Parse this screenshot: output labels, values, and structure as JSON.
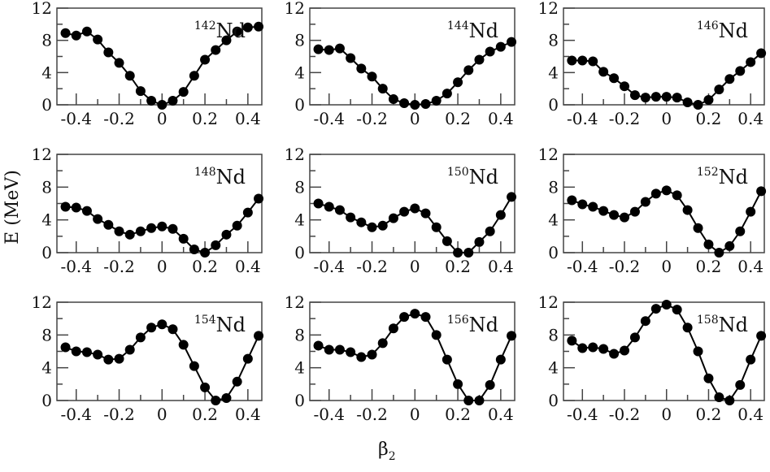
{
  "chart_data": [
    {
      "type": "line",
      "title": "142Nd",
      "mass": "142",
      "element": "Nd",
      "x": [
        -0.45,
        -0.4,
        -0.35,
        -0.3,
        -0.25,
        -0.2,
        -0.15,
        -0.1,
        -0.05,
        0,
        0.05,
        0.1,
        0.15,
        0.2,
        0.25,
        0.3,
        0.35,
        0.4,
        0.45
      ],
      "y": [
        8.9,
        8.6,
        9.1,
        8.1,
        6.5,
        5.2,
        3.6,
        1.7,
        0.5,
        0,
        0.5,
        1.6,
        3.6,
        5.6,
        6.8,
        8.0,
        9.1,
        9.6,
        9.7
      ]
    },
    {
      "type": "line",
      "title": "144Nd",
      "mass": "144",
      "element": "Nd",
      "x": [
        -0.45,
        -0.4,
        -0.35,
        -0.3,
        -0.25,
        -0.2,
        -0.15,
        -0.1,
        -0.05,
        0,
        0.05,
        0.1,
        0.15,
        0.2,
        0.25,
        0.3,
        0.35,
        0.4,
        0.45
      ],
      "y": [
        6.9,
        6.8,
        7.0,
        5.8,
        4.5,
        3.5,
        2.0,
        0.7,
        0.2,
        0,
        0.1,
        0.5,
        1.4,
        2.8,
        4.3,
        5.6,
        6.6,
        7.2,
        7.8
      ]
    },
    {
      "type": "line",
      "title": "146Nd",
      "mass": "146",
      "element": "Nd",
      "x": [
        -0.45,
        -0.4,
        -0.35,
        -0.3,
        -0.25,
        -0.2,
        -0.15,
        -0.1,
        -0.05,
        0,
        0.05,
        0.1,
        0.15,
        0.2,
        0.25,
        0.3,
        0.35,
        0.4,
        0.45
      ],
      "y": [
        5.5,
        5.5,
        5.4,
        4.1,
        3.3,
        2.3,
        1.2,
        0.9,
        1.0,
        1.0,
        0.9,
        0.3,
        0,
        0.6,
        1.9,
        3.2,
        4.2,
        5.3,
        6.4
      ]
    },
    {
      "type": "line",
      "title": "148Nd",
      "mass": "148",
      "element": "Nd",
      "x": [
        -0.45,
        -0.4,
        -0.35,
        -0.3,
        -0.25,
        -0.2,
        -0.15,
        -0.1,
        -0.05,
        0,
        0.05,
        0.1,
        0.15,
        0.2,
        0.25,
        0.3,
        0.35,
        0.4,
        0.45
      ],
      "y": [
        5.6,
        5.5,
        5.1,
        4.1,
        3.4,
        2.6,
        2.2,
        2.6,
        3.0,
        3.2,
        2.9,
        1.7,
        0.4,
        0,
        0.9,
        2.2,
        3.3,
        4.9,
        6.6
      ]
    },
    {
      "type": "line",
      "title": "150Nd",
      "mass": "150",
      "element": "Nd",
      "x": [
        -0.45,
        -0.4,
        -0.35,
        -0.3,
        -0.25,
        -0.2,
        -0.15,
        -0.1,
        -0.05,
        0,
        0.05,
        0.1,
        0.15,
        0.2,
        0.25,
        0.3,
        0.35,
        0.4,
        0.45
      ],
      "y": [
        6.0,
        5.6,
        5.2,
        4.3,
        3.7,
        3.1,
        3.3,
        4.2,
        5.0,
        5.4,
        4.8,
        3.1,
        1.4,
        0,
        0,
        1.3,
        2.6,
        4.6,
        6.8
      ]
    },
    {
      "type": "line",
      "title": "152Nd",
      "mass": "152",
      "element": "Nd",
      "x": [
        -0.45,
        -0.4,
        -0.35,
        -0.3,
        -0.25,
        -0.2,
        -0.15,
        -0.1,
        -0.05,
        0,
        0.05,
        0.1,
        0.15,
        0.2,
        0.25,
        0.3,
        0.35,
        0.4,
        0.45
      ],
      "y": [
        6.4,
        5.9,
        5.6,
        5.1,
        4.6,
        4.3,
        5.0,
        6.2,
        7.2,
        7.6,
        7.0,
        5.2,
        3.0,
        1.0,
        0,
        0.8,
        2.6,
        5.0,
        7.5
      ]
    },
    {
      "type": "line",
      "title": "154Nd",
      "mass": "154",
      "element": "Nd",
      "x": [
        -0.45,
        -0.4,
        -0.35,
        -0.3,
        -0.25,
        -0.2,
        -0.15,
        -0.1,
        -0.05,
        0,
        0.05,
        0.1,
        0.15,
        0.2,
        0.25,
        0.3,
        0.35,
        0.4,
        0.45
      ],
      "y": [
        6.5,
        6.0,
        5.9,
        5.6,
        5.0,
        5.1,
        6.2,
        7.7,
        8.9,
        9.3,
        8.7,
        6.8,
        4.2,
        1.6,
        0,
        0.3,
        2.3,
        5.1,
        7.9
      ]
    },
    {
      "type": "line",
      "title": "156Nd",
      "mass": "156",
      "element": "Nd",
      "x": [
        -0.45,
        -0.4,
        -0.35,
        -0.3,
        -0.25,
        -0.2,
        -0.15,
        -0.1,
        -0.05,
        0,
        0.05,
        0.1,
        0.15,
        0.2,
        0.25,
        0.3,
        0.35,
        0.4,
        0.45
      ],
      "y": [
        6.7,
        6.2,
        6.2,
        5.9,
        5.3,
        5.6,
        7.0,
        8.8,
        10.2,
        10.6,
        10.2,
        8.0,
        5.0,
        2.0,
        0,
        0,
        1.9,
        5.0,
        7.9
      ]
    },
    {
      "type": "line",
      "title": "158Nd",
      "mass": "158",
      "element": "Nd",
      "x": [
        -0.45,
        -0.4,
        -0.35,
        -0.3,
        -0.25,
        -0.2,
        -0.15,
        -0.1,
        -0.05,
        0,
        0.05,
        0.1,
        0.15,
        0.2,
        0.25,
        0.3,
        0.35,
        0.4,
        0.45
      ],
      "y": [
        7.3,
        6.4,
        6.5,
        6.3,
        5.7,
        6.1,
        7.7,
        9.7,
        11.2,
        11.7,
        11.1,
        8.9,
        6.0,
        2.7,
        0.4,
        0,
        1.9,
        5.0,
        7.9
      ]
    }
  ],
  "axes": {
    "xlabel_main": "β",
    "xlabel_sub": "2",
    "ylabel": "E (MeV)",
    "xlim": [
      -0.49,
      0.465
    ],
    "ylim": [
      0,
      12
    ],
    "xticks_major": [
      -0.4,
      -0.2,
      0,
      0.2,
      0.4
    ],
    "xtick_labels": [
      "-0.4",
      "-0.2",
      "0",
      "0.2",
      "0.4"
    ],
    "xticks_minor": [
      -0.3,
      -0.1,
      0.1,
      0.3
    ],
    "yticks_major": [
      0,
      4,
      8,
      12
    ],
    "ytick_labels": [
      "0",
      "4",
      "8",
      "12"
    ],
    "yticks_minor": [
      2,
      6,
      10
    ],
    "grid": false,
    "marker": "filled-circle",
    "line_color": "#000000"
  }
}
